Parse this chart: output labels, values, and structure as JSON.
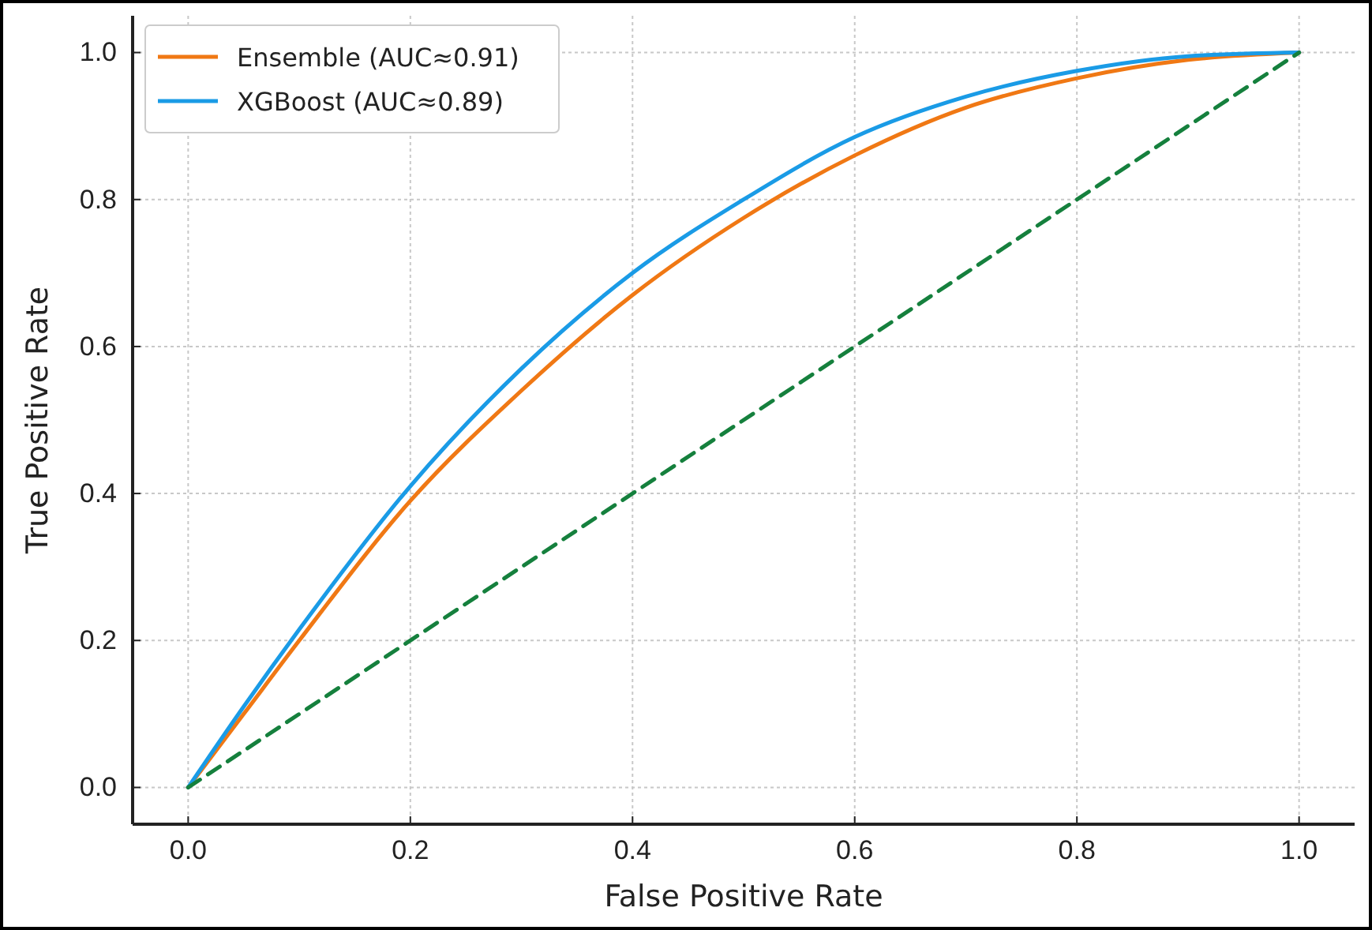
{
  "chart_data": {
    "type": "line",
    "xlabel": "False Positive Rate",
    "ylabel": "True Positive Rate",
    "x": [
      0,
      0.05,
      0.1,
      0.2,
      0.3,
      0.4,
      0.5,
      0.6,
      0.7,
      0.8,
      0.9,
      1
    ],
    "xlim": [
      -0.05,
      1.05
    ],
    "ylim": [
      -0.05,
      1.05
    ],
    "xticks": [
      {
        "value": 0,
        "label": "0.0"
      },
      {
        "value": 0.2,
        "label": "0.2"
      },
      {
        "value": 0.4,
        "label": "0.4"
      },
      {
        "value": 0.6,
        "label": "0.6"
      },
      {
        "value": 0.8,
        "label": "0.8"
      },
      {
        "value": 1,
        "label": "1.0"
      }
    ],
    "yticks": [
      {
        "value": 0,
        "label": "0.0"
      },
      {
        "value": 0.2,
        "label": "0.2"
      },
      {
        "value": 0.4,
        "label": "0.4"
      },
      {
        "value": 0.6,
        "label": "0.6"
      },
      {
        "value": 0.8,
        "label": "0.8"
      },
      {
        "value": 1,
        "label": "1.0"
      }
    ],
    "grid": true,
    "legend": "top left",
    "line_style": "solid",
    "series": [
      {
        "name": "Ensemble (AUC≈0.91)",
        "color": "#f07814",
        "values": [
          0,
          0.1,
          0.2,
          0.39,
          0.54,
          0.67,
          0.775,
          0.86,
          0.925,
          0.965,
          0.99,
          1
        ]
      },
      {
        "name": "XGBoost (AUC≈0.89)",
        "color": "#1a9be6",
        "values": [
          0,
          0.11,
          0.215,
          0.41,
          0.57,
          0.7,
          0.8,
          0.885,
          0.94,
          0.975,
          0.995,
          1
        ]
      },
      {
        "color": "#15803d",
        "line_style": "dashed",
        "x": [
          0,
          1
        ],
        "values": [
          0,
          1
        ]
      }
    ]
  }
}
